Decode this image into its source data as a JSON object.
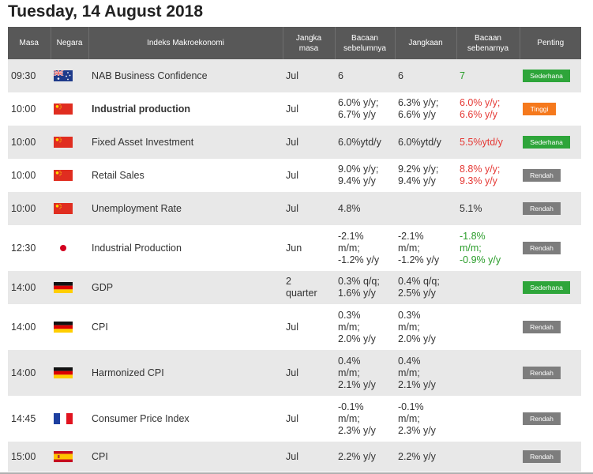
{
  "page_title": "Tuesday, 14 August 2018",
  "headers": {
    "time": "Masa",
    "country": "Negara",
    "indicator": "Indeks Makroekonomi",
    "period": "Jangka\nmasa",
    "previous": "Bacaan\nsebelumnya",
    "forecast": "Jangkaan",
    "actual": "Bacaan\nsebenarnya",
    "importance": "Penting"
  },
  "colors": {
    "header_bg": "#585858",
    "row_alt_bg": "#e8e8e8",
    "actual_up": "#2a9d2a",
    "actual_down": "#e53935",
    "importance_medium": "#2ea53a",
    "importance_high": "#f5791d",
    "importance_low": "#7d7d7d"
  },
  "rows": [
    {
      "time": "09:30",
      "country": "Australia",
      "flag_icon": "australia-flag-icon",
      "indicator": "NAB Business Confidence",
      "bold": false,
      "period": "Jul",
      "previous": "6",
      "forecast": "6",
      "actual": "7",
      "actual_trend": "up",
      "importance": "Sederhana",
      "importance_level": "med"
    },
    {
      "time": "10:00",
      "country": "China",
      "flag_icon": "china-flag-icon",
      "indicator": "Industrial production",
      "bold": true,
      "period": "Jul",
      "previous": "6.0% y/y;\n6.7% y/y",
      "forecast": "6.3% y/y;\n6.6% y/y",
      "actual": "6.0% y/y;\n6.6% y/y",
      "actual_trend": "down",
      "importance": "Tinggi",
      "importance_level": "high"
    },
    {
      "time": "10:00",
      "country": "China",
      "flag_icon": "china-flag-icon",
      "indicator": "Fixed Asset Investment",
      "bold": false,
      "period": "Jul",
      "previous": "6.0%ytd/y",
      "forecast": "6.0%ytd/y",
      "actual": "5.5%ytd/y",
      "actual_trend": "down",
      "importance": "Sederhana",
      "importance_level": "med"
    },
    {
      "time": "10:00",
      "country": "China",
      "flag_icon": "china-flag-icon",
      "indicator": "Retail Sales",
      "bold": false,
      "period": "Jul",
      "previous": "9.0% y/y;\n9.4% y/y",
      "forecast": "9.2% y/y;\n9.4% y/y",
      "actual": "8.8% y/y;\n9.3% y/y",
      "actual_trend": "down",
      "importance": "Rendah",
      "importance_level": "low"
    },
    {
      "time": "10:00",
      "country": "China",
      "flag_icon": "china-flag-icon",
      "indicator": "Unemployment Rate",
      "bold": false,
      "period": "Jul",
      "previous": "4.8%",
      "forecast": "",
      "actual": "5.1%",
      "actual_trend": "neutral",
      "importance": "Rendah",
      "importance_level": "low"
    },
    {
      "time": "12:30",
      "country": "Japan",
      "flag_icon": "japan-flag-icon",
      "indicator": "Industrial Production",
      "bold": false,
      "period": "Jun",
      "previous": "-2.1%\nm/m;\n-1.2% y/y",
      "forecast": "-2.1%\nm/m;\n-1.2% y/y",
      "actual": "-1.8%\nm/m;\n-0.9% y/y",
      "actual_trend": "up",
      "importance": "Rendah",
      "importance_level": "low"
    },
    {
      "time": "14:00",
      "country": "Germany",
      "flag_icon": "germany-flag-icon",
      "indicator": "GDP",
      "bold": false,
      "period": "2\nquarter",
      "previous": "0.3% q/q;\n1.6% y/y",
      "forecast": "0.4% q/q;\n2.5% y/y",
      "actual": "",
      "actual_trend": "neutral",
      "importance": "Sederhana",
      "importance_level": "med"
    },
    {
      "time": "14:00",
      "country": "Germany",
      "flag_icon": "germany-flag-icon",
      "indicator": "CPI",
      "bold": false,
      "period": "Jul",
      "previous": "0.3%\nm/m;\n2.0% y/y",
      "forecast": "0.3%\nm/m;\n2.0% y/y",
      "actual": "",
      "actual_trend": "neutral",
      "importance": "Rendah",
      "importance_level": "low"
    },
    {
      "time": "14:00",
      "country": "Germany",
      "flag_icon": "germany-flag-icon",
      "indicator": "Harmonized CPI",
      "bold": false,
      "period": "Jul",
      "previous": "0.4%\nm/m;\n2.1% y/y",
      "forecast": "0.4%\nm/m;\n2.1% y/y",
      "actual": "",
      "actual_trend": "neutral",
      "importance": "Rendah",
      "importance_level": "low"
    },
    {
      "time": "14:45",
      "country": "France",
      "flag_icon": "france-flag-icon",
      "indicator": "Consumer Price Index",
      "bold": false,
      "period": "Jul",
      "previous": "-0.1%\nm/m;\n2.3% y/y",
      "forecast": "-0.1%\nm/m;\n2.3% y/y",
      "actual": "",
      "actual_trend": "neutral",
      "importance": "Rendah",
      "importance_level": "low"
    },
    {
      "time": "15:00",
      "country": "Spain",
      "flag_icon": "spain-flag-icon",
      "indicator": "CPI",
      "bold": false,
      "period": "Jul",
      "previous": "2.2% y/y",
      "forecast": "2.2% y/y",
      "actual": "",
      "actual_trend": "neutral",
      "importance": "Rendah",
      "importance_level": "low"
    }
  ]
}
